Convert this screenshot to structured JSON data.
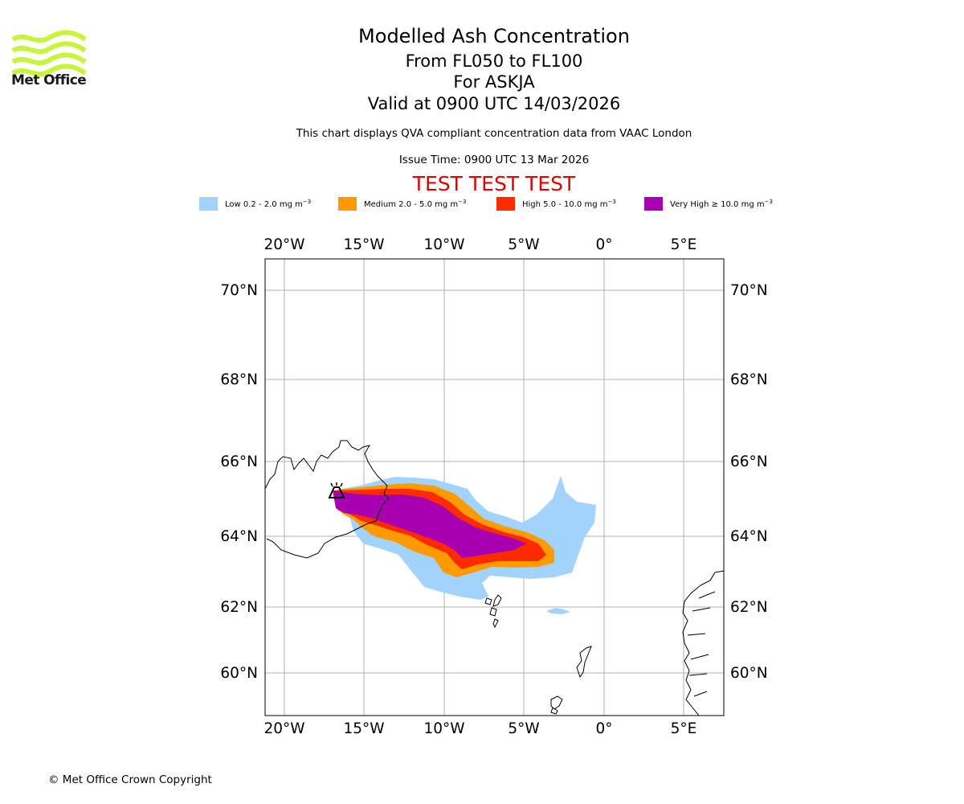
{
  "header": {
    "logo_text": "Met Office",
    "title": "Modelled Ash Concentration",
    "flight_levels": "From FL050 to FL100",
    "volcano": "For ASKJA",
    "valid_time": "Valid at 0900 UTC 14/03/2026",
    "description": "This chart displays QVA compliant concentration data from VAAC London",
    "issue_time": "Issue Time: 0900 UTC 13 Mar 2026",
    "test_banner": "TEST TEST TEST"
  },
  "legend": [
    {
      "label": "Low 0.2 - 2.0 mg m",
      "exp": "−3",
      "color": "#a1d3fc"
    },
    {
      "label": "Medium 2.0 - 5.0 mg m",
      "exp": "−3",
      "color": "#ff9a00"
    },
    {
      "label": "High 5.0 - 10.0 mg m",
      "exp": "−3",
      "color": "#ff2b00"
    },
    {
      "label": "Very High  ≥  10.0 mg m",
      "exp": "−3",
      "color": "#a800b0"
    }
  ],
  "map": {
    "lon_labels": [
      "20°W",
      "15°W",
      "10°W",
      "5°W",
      "0°",
      "5°E"
    ],
    "lat_labels": [
      "70°N",
      "68°N",
      "66°N",
      "64°N",
      "62°N",
      "60°N"
    ],
    "grid_color": "#b0b0b0",
    "volcano_marker": "volcano-icon"
  },
  "footer": {
    "copyright": "© Met Office Crown Copyright"
  }
}
